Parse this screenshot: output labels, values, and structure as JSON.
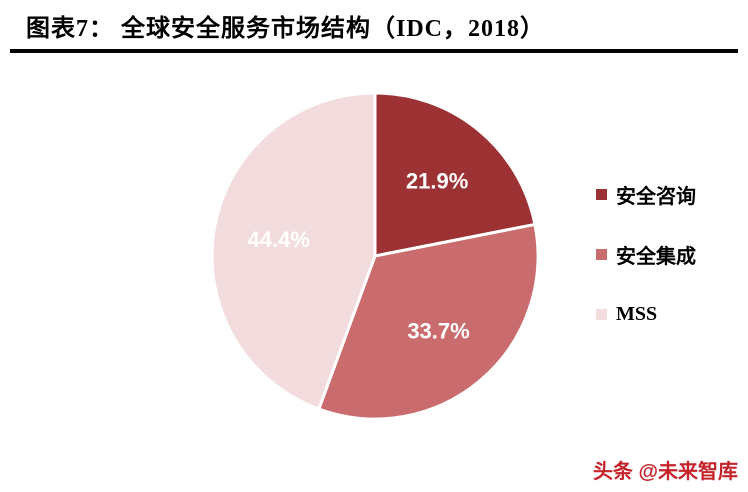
{
  "header": {
    "title": "图表7：  全球安全服务市场结构（IDC，2018）"
  },
  "chart_data": {
    "type": "pie",
    "title": "全球安全服务市场结构（IDC，2018）",
    "source": "IDC, 2018",
    "labels": [
      "安全咨询",
      "安全集成",
      "MSS"
    ],
    "values": [
      21.9,
      33.7,
      44.4
    ],
    "value_labels": [
      "21.9%",
      "33.7%",
      "44.4%"
    ],
    "colors": [
      "#9d3235",
      "#ca6b6e",
      "#f3dcdd"
    ],
    "slice_label_color": "#ffffff",
    "start_angle_deg": -90,
    "direction": "clockwise",
    "legend_position": "right"
  },
  "footer": {
    "watermark": "头条 @未来智库",
    "watermark_color": "#c4232a"
  }
}
